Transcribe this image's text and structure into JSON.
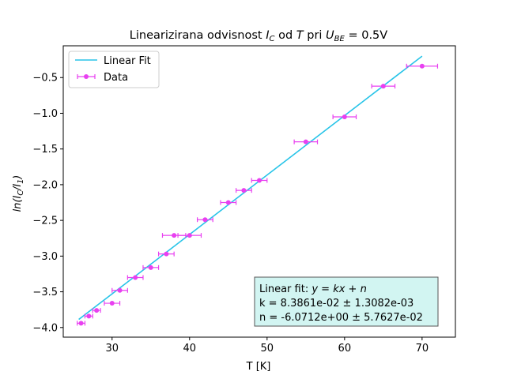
{
  "chart_data": {
    "type": "scatter",
    "title": {
      "prefix": "Linearizirana odvisnost ",
      "var1": "I",
      "var1_sub": "C",
      "middle": " od ",
      "var2": "T",
      "between": " pri ",
      "var3": "U",
      "var3_sub": "BE",
      "suffix": " = 0.5V"
    },
    "xlabel": "T [K]",
    "ylabel": {
      "prefix": "ln(",
      "num": "I",
      "num_sub": "C",
      "slash": "/",
      "den": "I",
      "den_sub": "1",
      "suffix": ")"
    },
    "xlim": [
      23.7,
      74.3
    ],
    "ylim": [
      -4.135,
      -0.055
    ],
    "xticks": [
      30,
      40,
      50,
      60,
      70
    ],
    "yticks": [
      -4.0,
      -3.5,
      -3.0,
      -2.5,
      -2.0,
      -1.5,
      -1.0,
      -0.5
    ],
    "ytick_labels": [
      "−4.0",
      "−3.5",
      "−3.0",
      "−2.5",
      "−2.0",
      "−1.5",
      "−1.0",
      "−0.5"
    ],
    "legend_position": "upper-left",
    "grid": false,
    "series": [
      {
        "name": "Linear Fit",
        "kind": "line",
        "color": "#28c4e8",
        "x": [
          25.7,
          70.0
        ],
        "y": [
          -3.887,
          -0.2
        ]
      },
      {
        "name": "Data",
        "kind": "scatter-errorbar",
        "color": "#e840f0",
        "x": [
          26,
          27,
          28,
          30,
          31,
          33,
          35,
          37,
          38,
          40,
          42,
          45,
          47,
          49,
          55,
          60,
          65,
          70
        ],
        "y": [
          -3.94,
          -3.84,
          -3.76,
          -3.66,
          -3.48,
          -3.3,
          -3.16,
          -2.97,
          -2.71,
          -2.71,
          -2.49,
          -2.25,
          -2.08,
          -1.94,
          -1.4,
          -1.05,
          -0.62,
          -0.34
        ],
        "xerr": [
          0.5,
          0.5,
          0.5,
          1.0,
          1.0,
          1.0,
          1.0,
          1.0,
          1.5,
          1.5,
          1.0,
          1.0,
          1.0,
          1.0,
          1.5,
          1.5,
          1.5,
          2.0
        ]
      }
    ],
    "annotation_box": {
      "line1_prefix": "Linear fit: ",
      "line1_formula": "y = kx + n",
      "line2": "k = 8.3861e-02 ± 1.3082e-03",
      "line3": "n = -6.0712e+00 ± 5.7627e-02",
      "background": "#d2f5f2",
      "border": "#555555"
    }
  }
}
